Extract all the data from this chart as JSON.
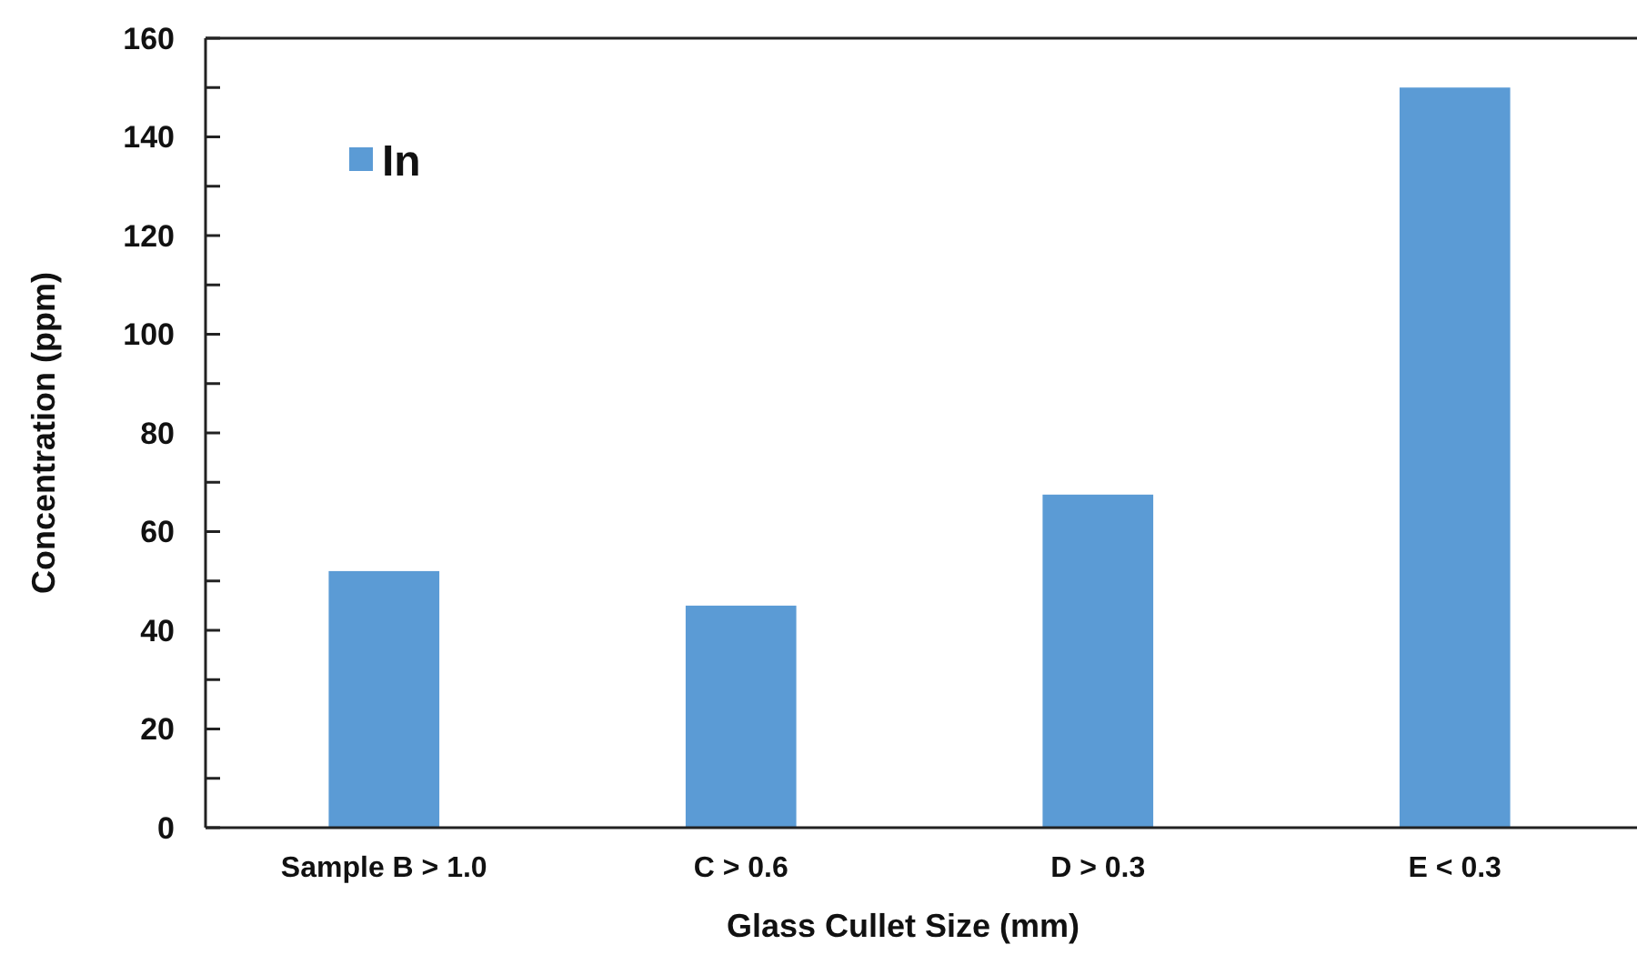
{
  "chart_data": {
    "type": "bar",
    "xlabel": "Glass Cullet Size (mm)",
    "ylabel": "Concentration  (ppm)",
    "categories": [
      "Sample B > 1.0",
      "C > 0.6",
      "D > 0.3",
      "E < 0.3"
    ],
    "series": [
      {
        "name": "In",
        "color": "#5b9bd5",
        "values": [
          52,
          45,
          67.5,
          150
        ]
      }
    ],
    "ylim": [
      0,
      160
    ],
    "yticks": [
      0,
      {
        "value": 10,
        "label": null
      },
      20,
      {
        "value": 30,
        "label": null
      },
      40,
      {
        "value": 50,
        "label": null
      },
      60,
      {
        "value": 70,
        "label": null
      },
      80,
      {
        "value": 90,
        "label": null
      },
      100,
      {
        "value": 110,
        "label": null
      },
      120,
      {
        "value": 130,
        "label": null
      },
      140,
      {
        "value": 150,
        "label": null
      },
      160
    ],
    "grid": false,
    "legend": "top left"
  }
}
